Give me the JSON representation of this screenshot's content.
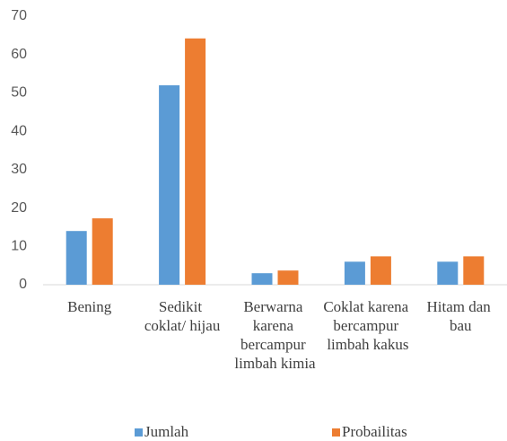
{
  "chart_data": {
    "type": "bar",
    "categories": [
      "Bening",
      "Sedikit coklat/ hijau",
      "Berwarna karena bercampur limbah kimia",
      "Coklat karena bercampur limbah kakus",
      "Hitam dan bau"
    ],
    "series": [
      {
        "name": "Jumlah",
        "color": "#5b9bd5",
        "values": [
          14,
          52,
          3,
          6,
          6
        ]
      },
      {
        "name": "Probailitas",
        "color": "#ed7d31",
        "values": [
          17.3,
          64.2,
          3.7,
          7.4,
          7.4
        ]
      }
    ],
    "ylim": [
      0,
      70
    ],
    "yticks": [
      0,
      10,
      20,
      30,
      40,
      50,
      60,
      70
    ],
    "grid": false,
    "legend": "bottom"
  }
}
